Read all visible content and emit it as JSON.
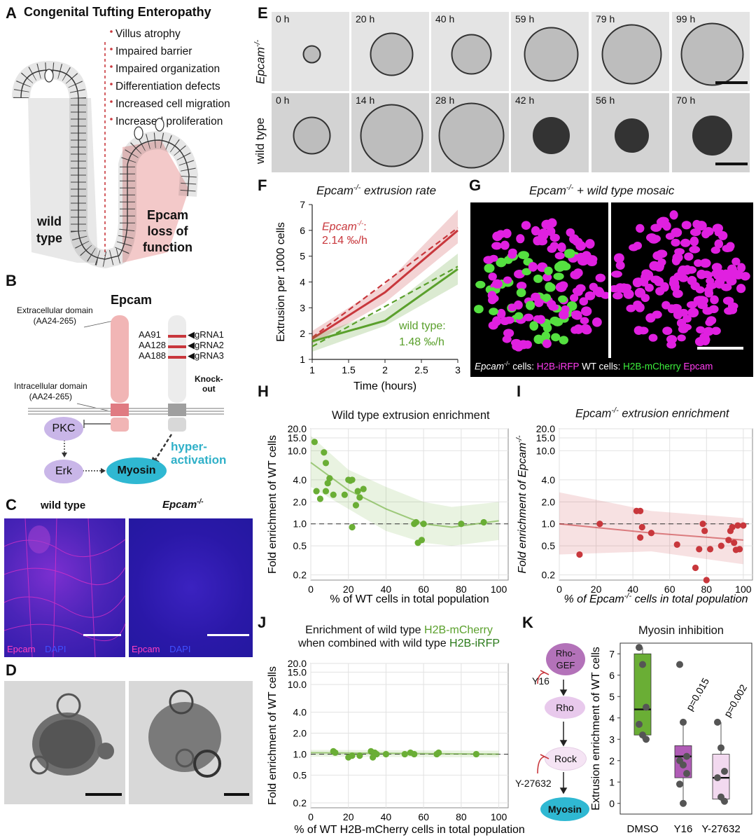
{
  "panelA": {
    "letter": "A",
    "title": "Congenital Tufting Enteropathy",
    "bullets": [
      "Villus atrophy",
      "Impaired barrier",
      "Impaired organization",
      "Differentiation defects",
      "Increased cell migration",
      "Increased proliferation"
    ],
    "wt_label": [
      "wild",
      "type"
    ],
    "ko_label": [
      "Epcam",
      "loss of",
      "function"
    ]
  },
  "panelB": {
    "letter": "B",
    "title": "Epcam",
    "extracellular": [
      "Extracellular domain",
      "(AA24-265)"
    ],
    "intracellular": [
      "Intracellular domain",
      "(AA24-265)"
    ],
    "aa": [
      "AA91",
      "AA128",
      "AA188"
    ],
    "grna": [
      "◀gRNA1",
      "◀gRNA2",
      "◀gRNA3"
    ],
    "knockout": [
      "Knock-",
      "out"
    ],
    "pkc": "PKC",
    "erk": "Erk",
    "myosin": "Myosin",
    "hyper": [
      "hyper-",
      "activation"
    ]
  },
  "panelC": {
    "letter": "C",
    "wt": "wild type",
    "ko": "Epcam",
    "ko_sup": "-/-",
    "stain1": "Epcam",
    "stain2": "DAPI"
  },
  "panelD": {
    "letter": "D"
  },
  "panelE": {
    "letter": "E",
    "row1_label": "Epcam",
    "row1_sup": "-/-",
    "row2_label": "wild type",
    "row1_times": [
      "0 h",
      "20 h",
      "40 h",
      "59 h",
      "79 h",
      "99 h"
    ],
    "row2_times": [
      "0 h",
      "14 h",
      "28 h",
      "42 h",
      "56 h",
      "70 h"
    ]
  },
  "panelF": {
    "letter": "F",
    "title": "Epcam",
    "title_sup": "-/-",
    "title_rest": " extrusion rate",
    "ko_name": "Epcam",
    "ko_sup": "-/-",
    "ko_colon": ":",
    "ko_rate": "2.14 ‰/h",
    "wt_name": "wild type:",
    "wt_rate": "1.48 ‰/h"
  },
  "panelG": {
    "letter": "G",
    "title": "Epcam",
    "title_sup": "-/-",
    "title_rest": " + wild type mosaic",
    "cap1": "Epcam",
    "cap1_sup": "-/-",
    "cap2": " cells: ",
    "cap3": "H2B-iRFP",
    "cap4": " WT cells: ",
    "cap5": "H2B-mCherry",
    "cap6": " Epcam"
  },
  "panelH": {
    "letter": "H",
    "title": "Wild type extrusion enrichment",
    "xlabel": "% of WT cells in total population",
    "ylabel": "Fold enrichment of WT cells"
  },
  "panelI": {
    "letter": "I",
    "title": "Epcam",
    "title_sup": "-/-",
    "title_rest": " extrusion enrichment",
    "xlabel": "% of Epcam",
    "xlabel_sup": "-/-",
    "xlabel_rest": " cells in total population",
    "ylabel": "Fold enrichment of Epcam",
    "ylabel_sup": "-/-"
  },
  "panelJ": {
    "letter": "J",
    "title_a": "Enrichment of wild type ",
    "title_b": "H2B-mCherry",
    "title_c": "when combined with wild type ",
    "title_d": "H2B-iRFP",
    "xlabel": "% of WT H2B-mCherry cells in total population",
    "ylabel": "Fold enrichment of WT cells"
  },
  "panelK": {
    "letter": "K",
    "title": "Myosin inhibition",
    "ylabel": "Extrusion enrichment of WT cells",
    "path": [
      "Rho-",
      "GEF",
      "Rho",
      "Rock",
      "Myosin"
    ],
    "inhib": [
      "Y16",
      "Y-27632"
    ],
    "p1": "p=0.015",
    "p2": "p=0.002"
  },
  "colors": {
    "ko": "#c8373c",
    "wt": "#5aa02c",
    "magenta": "#e020e0",
    "blue": "#2a1acb"
  },
  "chart_data": [
    {
      "type": "line",
      "title": "Epcam-/- extrusion rate",
      "xlabel": "Time (hours)",
      "ylabel": "Extrusion per 1000 cells",
      "xlim": [
        1,
        3
      ],
      "ylim": [
        1,
        7
      ],
      "x_ticks": [
        1,
        1.5,
        2,
        2.5,
        3
      ],
      "y_ticks": [
        1,
        2,
        3,
        4,
        5,
        6,
        7
      ],
      "series": [
        {
          "name": "Epcam-/-",
          "x": [
            1,
            2,
            3
          ],
          "y": [
            1.8,
            3.6,
            6.0
          ],
          "fit": [
            [
              1,
              1.85
            ],
            [
              3,
              6.1
            ]
          ],
          "band": [
            [
              1,
              1.6,
              2.1
            ],
            [
              2,
              3.2,
              3.9
            ],
            [
              3,
              5.5,
              6.8
            ]
          ]
        },
        {
          "name": "wild type",
          "x": [
            1,
            2,
            3
          ],
          "y": [
            1.7,
            2.5,
            4.5
          ],
          "fit": [
            [
              1,
              1.5
            ],
            [
              3,
              4.6
            ]
          ],
          "band": [
            [
              1,
              1.3,
              1.9
            ],
            [
              2,
              2.3,
              2.9
            ],
            [
              3,
              3.9,
              5.1
            ]
          ]
        }
      ]
    },
    {
      "type": "scatter",
      "title": "Wild type extrusion enrichment",
      "xlabel": "% of WT cells in total population",
      "ylabel": "Fold enrichment of WT cells",
      "xlim": [
        0,
        105
      ],
      "ylim": [
        0.17,
        20
      ],
      "yscale": "log",
      "y_ticks": [
        0.2,
        0.5,
        1.0,
        2.0,
        4.0,
        10.0,
        15.0,
        20.0
      ],
      "x_ticks": [
        0,
        20,
        40,
        60,
        80,
        100
      ],
      "points": [
        [
          2,
          13.2
        ],
        [
          3,
          2.8
        ],
        [
          5,
          2.2
        ],
        [
          7,
          9.5
        ],
        [
          8,
          6.8
        ],
        [
          8,
          2.8
        ],
        [
          9,
          3.6
        ],
        [
          10,
          4.2
        ],
        [
          12,
          2.5
        ],
        [
          18,
          2.5
        ],
        [
          20,
          4.0
        ],
        [
          21,
          3.9
        ],
        [
          22,
          4.0
        ],
        [
          22,
          0.9
        ],
        [
          24,
          1.8
        ],
        [
          25,
          2.8
        ],
        [
          26,
          2.3
        ],
        [
          28,
          3.0
        ],
        [
          55,
          1.0
        ],
        [
          56,
          1.05
        ],
        [
          57,
          0.55
        ],
        [
          59,
          0.6
        ],
        [
          60,
          1.0
        ],
        [
          80,
          1.0
        ],
        [
          92,
          1.05
        ]
      ],
      "fit": [
        [
          0,
          6.9
        ],
        [
          20,
          2.9
        ],
        [
          40,
          1.6
        ],
        [
          60,
          1.0
        ],
        [
          75,
          0.9
        ],
        [
          100,
          1.1
        ]
      ],
      "band_low": [
        [
          0,
          3.2
        ],
        [
          20,
          1.6
        ],
        [
          40,
          0.8
        ],
        [
          60,
          0.55
        ],
        [
          75,
          0.5
        ],
        [
          100,
          0.6
        ]
      ],
      "band_high": [
        [
          0,
          16
        ],
        [
          20,
          5.5
        ],
        [
          40,
          3.2
        ],
        [
          60,
          2.0
        ],
        [
          75,
          1.7
        ],
        [
          100,
          2.0
        ]
      ],
      "ref": 1.0
    },
    {
      "type": "scatter",
      "title": "Epcam-/- extrusion enrichment",
      "xlabel": "% of Epcam-/- cells in total population",
      "ylabel": "Fold enrichment of Epcam-/-",
      "xlim": [
        0,
        105
      ],
      "ylim": [
        0.17,
        20
      ],
      "yscale": "log",
      "y_ticks": [
        0.2,
        0.5,
        1.0,
        2.0,
        4.0,
        10.0,
        15.0,
        20.0
      ],
      "x_ticks": [
        0,
        20,
        40,
        60,
        80,
        100
      ],
      "points": [
        [
          11,
          0.38
        ],
        [
          22,
          1.0
        ],
        [
          42,
          1.5
        ],
        [
          44,
          1.5
        ],
        [
          44,
          0.65
        ],
        [
          45,
          0.9
        ],
        [
          50,
          0.75
        ],
        [
          64,
          0.52
        ],
        [
          74,
          0.25
        ],
        [
          76,
          0.45
        ],
        [
          78,
          1.0
        ],
        [
          79,
          0.8
        ],
        [
          80,
          0.17
        ],
        [
          82,
          0.45
        ],
        [
          88,
          0.5
        ],
        [
          92,
          0.6
        ],
        [
          93,
          0.8
        ],
        [
          94,
          0.9
        ],
        [
          95,
          0.55
        ],
        [
          96,
          0.44
        ],
        [
          97,
          0.95
        ],
        [
          98,
          0.45
        ],
        [
          100,
          0.95
        ]
      ],
      "fit": [
        [
          0,
          1.0
        ],
        [
          50,
          0.75
        ],
        [
          100,
          0.6
        ]
      ],
      "band_low": [
        [
          0,
          0.38
        ],
        [
          50,
          0.42
        ],
        [
          100,
          0.28
        ]
      ],
      "band_high": [
        [
          0,
          2.7
        ],
        [
          50,
          1.5
        ],
        [
          100,
          1.2
        ]
      ],
      "ref": 1.0
    },
    {
      "type": "scatter",
      "title": "Enrichment of wild type H2B-mCherry when combined with wild type H2B-iRFP",
      "xlabel": "% of WT H2B-mCherry cells in total population",
      "ylabel": "Fold enrichment of WT cells",
      "xlim": [
        0,
        105
      ],
      "ylim": [
        0.17,
        20
      ],
      "yscale": "log",
      "y_ticks": [
        0.2,
        0.5,
        1.0,
        2.0,
        4.0,
        10.0,
        15.0,
        20.0
      ],
      "x_ticks": [
        0,
        20,
        40,
        60,
        80,
        100
      ],
      "points": [
        [
          12,
          1.1
        ],
        [
          13,
          1.05
        ],
        [
          20,
          0.9
        ],
        [
          22,
          0.95
        ],
        [
          26,
          0.95
        ],
        [
          32,
          1.1
        ],
        [
          33,
          0.9
        ],
        [
          34,
          1.05
        ],
        [
          35,
          1.0
        ],
        [
          40,
          1.0
        ],
        [
          50,
          1.0
        ],
        [
          53,
          1.05
        ],
        [
          55,
          1.0
        ],
        [
          67,
          1.0
        ],
        [
          68,
          1.05
        ],
        [
          88,
          1.0
        ]
      ],
      "fit": [
        [
          0,
          1.05
        ],
        [
          100,
          1.0
        ]
      ],
      "band_low": [
        [
          0,
          0.92
        ],
        [
          100,
          0.9
        ]
      ],
      "band_high": [
        [
          0,
          1.15
        ],
        [
          100,
          1.12
        ]
      ],
      "ref": 1.0
    },
    {
      "type": "box",
      "title": "Myosin inhibition",
      "ylabel": "Extrusion enrichment of WT cells",
      "categories": [
        "DMSO",
        "Y16",
        "Y-27632"
      ],
      "ylim": [
        -0.5,
        7.5
      ],
      "y_ticks": [
        0,
        1,
        2,
        3,
        4,
        5,
        6,
        7
      ],
      "boxes": [
        {
          "min": 3.0,
          "q1": 3.2,
          "median": 4.4,
          "q3": 7.0,
          "max": 7.3,
          "color": "#6aae35",
          "points": [
            7.3,
            6.5,
            4.5,
            3.7,
            3.2,
            3.0
          ]
        },
        {
          "min": 0,
          "q1": 1.2,
          "median": 2.2,
          "q3": 2.7,
          "max": 3.8,
          "color": "#b05cb6",
          "points": [
            6.5,
            3.8,
            2.2,
            2.0,
            1.8,
            1.4,
            0.9,
            0
          ]
        },
        {
          "min": 0.1,
          "q1": 0.2,
          "median": 1.2,
          "q3": 2.3,
          "max": 3.8,
          "color": "#f2d9ef",
          "points": [
            3.8,
            2.6,
            1.5,
            1.2,
            0.3,
            0.1
          ]
        }
      ]
    }
  ]
}
